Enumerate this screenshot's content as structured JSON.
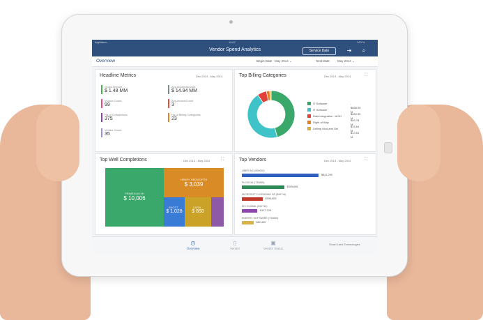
{
  "status_bar": {
    "carrier": "Applidium",
    "time": "19:07",
    "battery": "100 %"
  },
  "app": {
    "title": "Vendor Spend Analytics",
    "service_date_button": "Service Date"
  },
  "filter_bar": {
    "section": "Overview",
    "begin_label": "Begin Date",
    "begin_value": "May 2014",
    "end_label": "End Date",
    "end_value": "May 2014"
  },
  "headline_metrics": {
    "title": "Headline Metrics",
    "range": "Dec 2013 - May 2014",
    "items": [
      {
        "label": "Gross Amount",
        "value": "$ 1.48 MM",
        "color": "#4caf50"
      },
      {
        "label": "Avg.InvoiceAmount",
        "value": "$ 14.94 MM",
        "color": "#7f8c8d"
      },
      {
        "label": "Invoice Count",
        "value": "99",
        "color": "#e84a7f"
      },
      {
        "label": "Avg.InvoiceCount",
        "value": "3",
        "color": "#e74c3c"
      },
      {
        "label": "Ha.of Completions",
        "value": "375",
        "color": "#8e44ad"
      },
      {
        "label": "Ha.of Billing Categories",
        "value": "23",
        "color": "#e67e22"
      },
      {
        "label": "Vendor Count",
        "value": "35",
        "color": "#9b8fd6"
      }
    ]
  },
  "billing_categories": {
    "title": "Top Billing Categories",
    "range": "Dec 2013 - May 2014",
    "legend": [
      {
        "name": "IT Software",
        "value": "- $668.55 M",
        "color": "#3aa86b"
      },
      {
        "name": "IT Software",
        "value": "- $650.35 M",
        "color": "#3fc3c8"
      },
      {
        "name": "Data integration - ACID",
        "value": "- $92.78 M",
        "color": "#e0413b"
      },
      {
        "name": "Right of Way",
        "value": "- $33.64 M",
        "color": "#e67e22"
      },
      {
        "name": "Drilling Mud and Gel",
        "value": "- $13.51 M",
        "color": "#d6b13a"
      }
    ]
  },
  "chart_data": {
    "type": "pie",
    "title": "Top Billing Categories",
    "categories": [
      "IT Software",
      "IT Software",
      "Data integration - ACID",
      "Right of Way",
      "Drilling Mud and Gel"
    ],
    "values": [
      668.55,
      650.35,
      92.78,
      33.64,
      13.51
    ],
    "unit": "$M",
    "colors": [
      "#3aa86b",
      "#3fc3c8",
      "#e0413b",
      "#e67e22",
      "#d6b13a"
    ]
  },
  "well_completions": {
    "title": "Top Well Completions",
    "range": "Dec 2013 - May 2014",
    "cells": [
      {
        "label": "FRIMEXUM 4H",
        "value": "$ 10,006",
        "color": "#3aa86b"
      },
      {
        "label": "HENRY HEDWORTH",
        "value": "$ 3,039",
        "color": "#d98b26"
      },
      {
        "label": "KNOTT...",
        "value": "$ 1,028",
        "color": "#3a7bd5"
      },
      {
        "label": "CARN...",
        "value": "$ 850",
        "color": "#c9a227"
      },
      {
        "label": "",
        "value": "",
        "color": "#8e5aa8"
      }
    ]
  },
  "top_vendors": {
    "title": "Top Vendors",
    "range": "Dec 2013 - May 2014",
    "items": [
      {
        "name": "UBER INC (900002)",
        "value": "$541,290",
        "color": "#2f5fbf",
        "fraction": 1.0
      },
      {
        "name": "PLEXICAL (733645)",
        "value": "$305,698",
        "color": "#2e8b57",
        "fraction": 0.55
      },
      {
        "name": "MICROSOFT LICENSING GP (990714)",
        "value": "$156,853",
        "color": "#c0392b",
        "fraction": 0.27
      },
      {
        "name": "EIS GLOBAL (000714)",
        "value": "$107,705",
        "color": "#8e44ad",
        "fraction": 0.2
      },
      {
        "name": "ENERFIX SOFTWARE (744650)",
        "value": "$82,495",
        "color": "#d9b24a",
        "fraction": 0.15
      }
    ]
  },
  "tabs": [
    {
      "label": "Overview",
      "icon": "clock-icon",
      "active": true
    },
    {
      "label": "Vendor",
      "icon": "document-icon",
      "active": false
    },
    {
      "label": "Vendor Status",
      "icon": "briefcase-icon",
      "active": false
    }
  ],
  "brand": "Smart Labs Technologies"
}
